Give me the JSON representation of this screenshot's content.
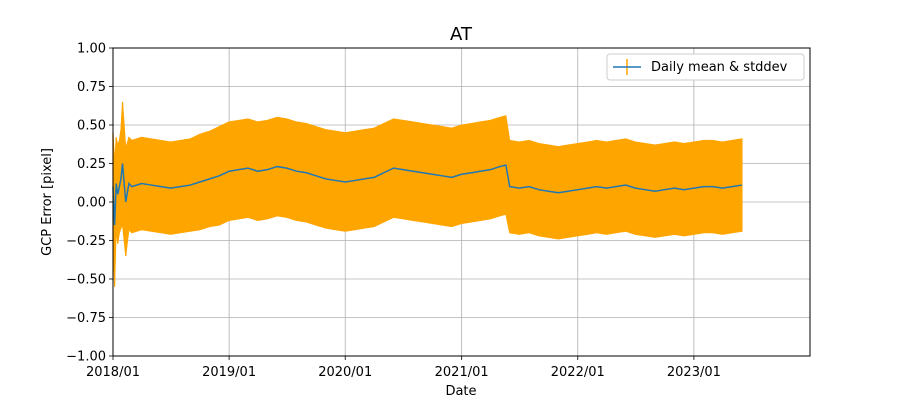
{
  "chart_data": {
    "type": "line",
    "title": "AT",
    "xlabel": "Date",
    "ylabel": "GCP Error [pixel]",
    "x_ticks": [
      "2018/01",
      "2019/01",
      "2020/01",
      "2021/01",
      "2022/01",
      "2023/01"
    ],
    "x_tick_dates": [
      "2018-01-01",
      "2019-01-01",
      "2020-01-01",
      "2021-01-01",
      "2022-01-01",
      "2023-01-01"
    ],
    "xlim": [
      "2018-01-01",
      "2024-01-01"
    ],
    "ylim": [
      -1.0,
      1.0
    ],
    "y_ticks": [
      -1.0,
      -0.75,
      -0.5,
      -0.25,
      0.0,
      0.25,
      0.5,
      0.75,
      1.0
    ],
    "y_tick_labels": [
      "−1.00",
      "−0.75",
      "−0.50",
      "−0.25",
      "0.00",
      "0.25",
      "0.50",
      "0.75",
      "1.00"
    ],
    "grid": true,
    "legend_position": "top-right",
    "series": [
      {
        "name": "Daily mean & stddev",
        "line_color": "#1f77b4",
        "errorbar_color": "#ffa500",
        "x": [
          "2018-01-01",
          "2018-01-06",
          "2018-01-11",
          "2018-01-16",
          "2018-01-21",
          "2018-01-26",
          "2018-01-31",
          "2018-02-10",
          "2018-02-20",
          "2018-03-01",
          "2018-04-01",
          "2018-05-01",
          "2018-06-01",
          "2018-07-01",
          "2018-08-01",
          "2018-09-01",
          "2018-10-01",
          "2018-11-01",
          "2018-12-01",
          "2019-01-01",
          "2019-02-01",
          "2019-03-01",
          "2019-04-01",
          "2019-05-01",
          "2019-06-01",
          "2019-07-01",
          "2019-08-01",
          "2019-09-01",
          "2019-10-01",
          "2019-11-01",
          "2019-12-01",
          "2020-01-01",
          "2020-02-01",
          "2020-03-01",
          "2020-04-01",
          "2020-05-01",
          "2020-06-01",
          "2020-07-01",
          "2020-08-01",
          "2020-09-01",
          "2020-10-01",
          "2020-11-01",
          "2020-12-01",
          "2021-01-01",
          "2021-02-01",
          "2021-03-01",
          "2021-04-01",
          "2021-05-01",
          "2021-05-20",
          "2021-06-01",
          "2021-07-01",
          "2021-08-01",
          "2021-09-01",
          "2021-10-01",
          "2021-11-01",
          "2021-12-01",
          "2022-01-01",
          "2022-02-01",
          "2022-03-01",
          "2022-04-01",
          "2022-05-01",
          "2022-06-01",
          "2022-07-01",
          "2022-08-01",
          "2022-09-01",
          "2022-10-01",
          "2022-11-01",
          "2022-12-01",
          "2023-01-01",
          "2023-02-01",
          "2023-03-01",
          "2023-04-01",
          "2023-05-01",
          "2023-06-01"
        ],
        "mean": [
          0.1,
          -0.15,
          0.12,
          0.05,
          0.1,
          0.15,
          0.25,
          0.0,
          0.12,
          0.1,
          0.12,
          0.11,
          0.1,
          0.09,
          0.1,
          0.11,
          0.13,
          0.15,
          0.17,
          0.2,
          0.21,
          0.22,
          0.2,
          0.21,
          0.23,
          0.22,
          0.2,
          0.19,
          0.17,
          0.15,
          0.14,
          0.13,
          0.14,
          0.15,
          0.16,
          0.19,
          0.22,
          0.21,
          0.2,
          0.19,
          0.18,
          0.17,
          0.16,
          0.18,
          0.19,
          0.2,
          0.21,
          0.23,
          0.24,
          0.1,
          0.09,
          0.1,
          0.08,
          0.07,
          0.06,
          0.07,
          0.08,
          0.09,
          0.1,
          0.09,
          0.1,
          0.11,
          0.09,
          0.08,
          0.07,
          0.08,
          0.09,
          0.08,
          0.09,
          0.1,
          0.1,
          0.09,
          0.1,
          0.11
        ],
        "stddev": [
          0.35,
          0.4,
          0.3,
          0.32,
          0.3,
          0.32,
          0.4,
          0.35,
          0.3,
          0.3,
          0.3,
          0.3,
          0.3,
          0.3,
          0.3,
          0.3,
          0.31,
          0.31,
          0.32,
          0.32,
          0.32,
          0.32,
          0.32,
          0.32,
          0.32,
          0.32,
          0.32,
          0.32,
          0.32,
          0.32,
          0.32,
          0.32,
          0.32,
          0.32,
          0.32,
          0.32,
          0.32,
          0.32,
          0.32,
          0.32,
          0.32,
          0.32,
          0.32,
          0.32,
          0.32,
          0.32,
          0.32,
          0.32,
          0.32,
          0.3,
          0.3,
          0.3,
          0.3,
          0.3,
          0.3,
          0.3,
          0.3,
          0.3,
          0.3,
          0.3,
          0.3,
          0.3,
          0.3,
          0.3,
          0.3,
          0.3,
          0.3,
          0.3,
          0.3,
          0.3,
          0.3,
          0.3,
          0.3,
          0.3
        ]
      }
    ]
  }
}
